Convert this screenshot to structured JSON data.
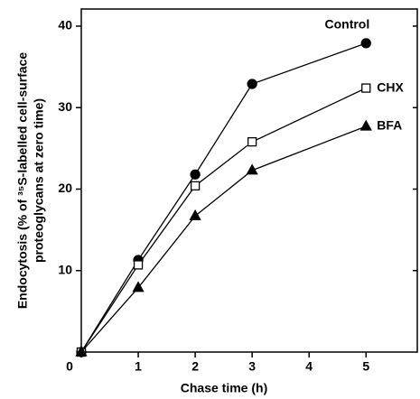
{
  "chart_data": {
    "type": "line",
    "x_label": "Chase time (h)",
    "y_label": [
      "Endocytosis (% of ³⁵S-labelled cell-surface",
      "proteoglycans at zero time)"
    ],
    "x": [
      0,
      1,
      2,
      3,
      5
    ],
    "series": [
      {
        "name": "Control",
        "color": "#000000",
        "marker": "circle",
        "values": [
          0,
          11.3,
          21.8,
          32.9,
          37.9
        ]
      },
      {
        "name": "CHX",
        "color": "#000000",
        "marker": "open-square",
        "values": [
          0,
          10.7,
          20.4,
          25.8,
          32.4
        ]
      },
      {
        "name": "BFA",
        "color": "#000000",
        "marker": "triangle",
        "values": [
          0,
          7.9,
          16.7,
          22.3,
          27.7
        ]
      }
    ],
    "xlim": [
      0,
      5.9
    ],
    "ylim": [
      0,
      42.1
    ],
    "xticks": [
      0,
      1,
      2,
      3,
      4,
      5
    ],
    "yticks": [
      10,
      20,
      30,
      40
    ]
  }
}
